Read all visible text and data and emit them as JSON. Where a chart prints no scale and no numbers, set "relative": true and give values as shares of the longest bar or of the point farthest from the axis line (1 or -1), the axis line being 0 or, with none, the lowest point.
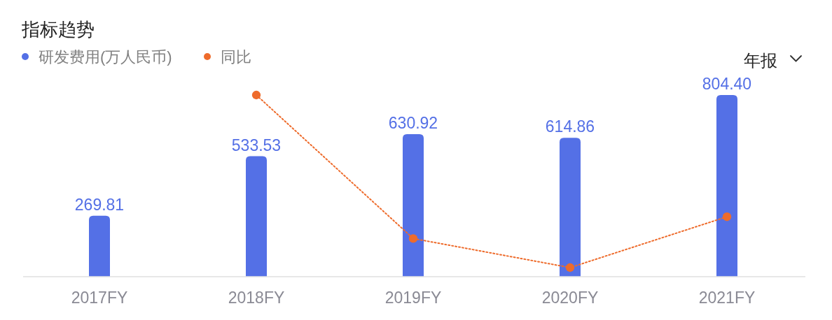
{
  "chart_data": [
    {
      "type": "bar",
      "title": "指标趋势",
      "categories": [
        "2017FY",
        "2018FY",
        "2019FY",
        "2020FY",
        "2021FY"
      ],
      "series": [
        {
          "name": "研发费用(万人民币)",
          "color": "#5470e6",
          "values": [
            269.81,
            533.53,
            630.92,
            614.86,
            804.4
          ],
          "value_labels": [
            "269.81",
            "533.53",
            "630.92",
            "614.86",
            "804.40"
          ]
        }
      ],
      "legend": "top left",
      "annotations": [
        "年报"
      ]
    },
    {
      "type": "line",
      "relative": true,
      "categories": [
        null,
        null,
        null,
        null,
        null
      ],
      "series": [
        {
          "name": "同比",
          "color": "#ee6b2b",
          "values": [
            null,
            1,
            0.21,
            0.05,
            0.33
          ]
        }
      ],
      "marker": "circle",
      "line_style": "dotted",
      "legend": "top left"
    }
  ]
}
